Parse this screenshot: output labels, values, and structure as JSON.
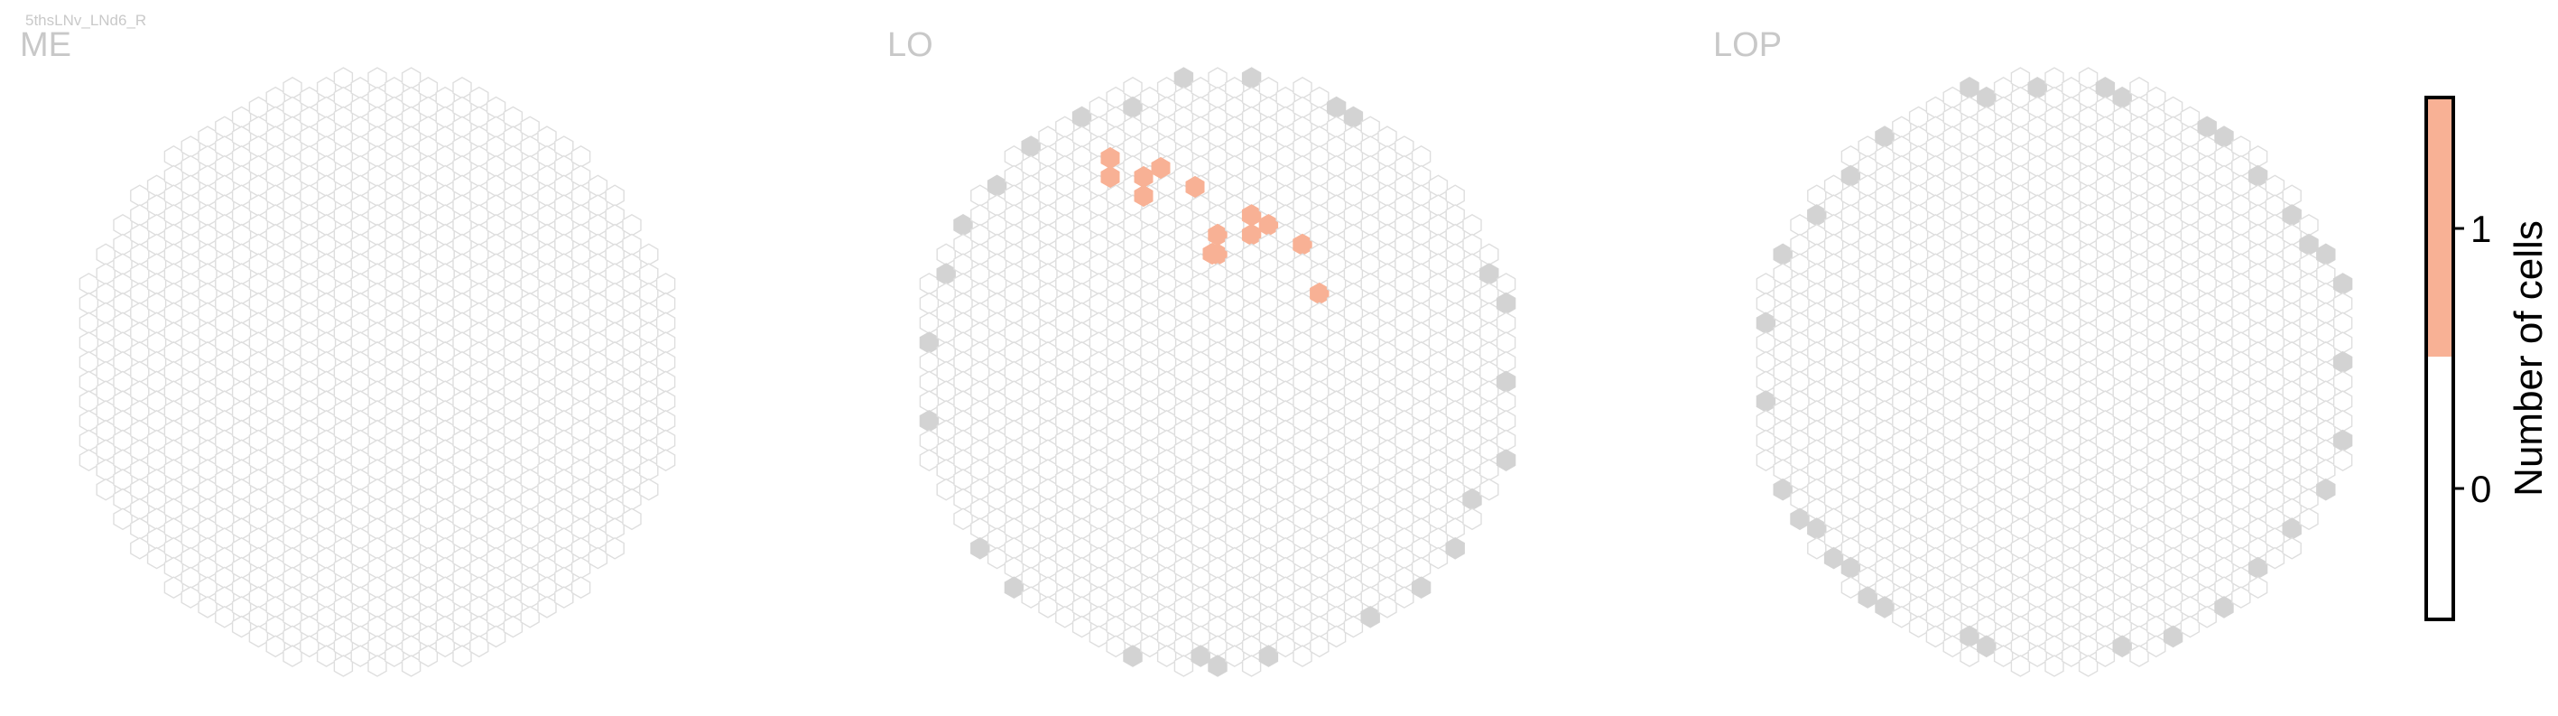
{
  "header": {
    "corner_text": "5thsLNv_LNd6_R"
  },
  "colors": {
    "empty_hex_stroke": "#dedede",
    "boundary_hex_fill": "#d3d3d3",
    "count1_fill": "#f8b195",
    "colorbar_stroke": "#000000"
  },
  "chart_data": [
    {
      "type": "heatmap",
      "title": "ME",
      "hex_grid": "circular hexagonal column grid, outline-only hexagons",
      "filled_cells": []
    },
    {
      "type": "heatmap",
      "title": "LO",
      "hex_grid": "circular hexagonal column grid",
      "filled_cells": [
        {
          "hex": [
            7,
            6
          ],
          "value": 1
        },
        {
          "hex": [
            7,
            5
          ],
          "value": 1
        },
        {
          "hex": [
            9,
            4
          ],
          "value": 1
        },
        {
          "hex": [
            9,
            5
          ],
          "value": 1
        },
        {
          "hex": [
            10,
            4
          ],
          "value": 1
        },
        {
          "hex": [
            12,
            5
          ],
          "value": 1
        },
        {
          "hex": [
            13,
            8
          ],
          "value": 1
        }
      ],
      "boundary_cells_gray": true
    },
    {
      "type": "heatmap",
      "title": "LOP",
      "hex_grid": "circular hexagonal column grid",
      "filled_cells": [],
      "boundary_cells_gray": true
    }
  ],
  "colorbar": {
    "label": "Number of cells",
    "ticks": [
      "0",
      "1"
    ],
    "values": [
      0,
      1
    ],
    "range": [
      -0.5,
      1.5
    ],
    "colors": [
      "#ffffff",
      "#f8b195"
    ]
  }
}
